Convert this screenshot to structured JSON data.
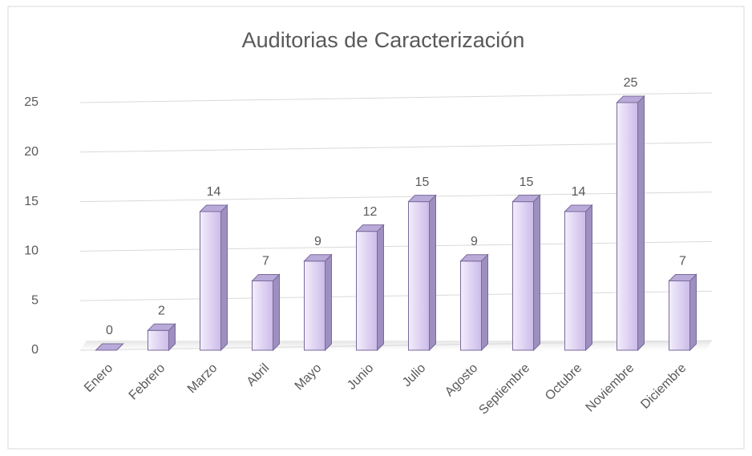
{
  "chart_data": {
    "type": "bar3d",
    "title": "Auditorias  de Caracterización",
    "categories": [
      "Enero",
      "Febrero",
      "Marzo",
      "Abril",
      "Mayo",
      "Junio",
      "Julio",
      "Agosto",
      "Septiembre",
      "Octubre",
      "Noviembre",
      "Diciembre"
    ],
    "values": [
      0,
      2,
      14,
      7,
      9,
      12,
      15,
      9,
      15,
      14,
      25,
      7
    ],
    "color": "#d9ccf2",
    "ylim": [
      0,
      25
    ],
    "yticks": [
      0,
      5,
      10,
      15,
      20,
      25
    ],
    "grid": true
  }
}
